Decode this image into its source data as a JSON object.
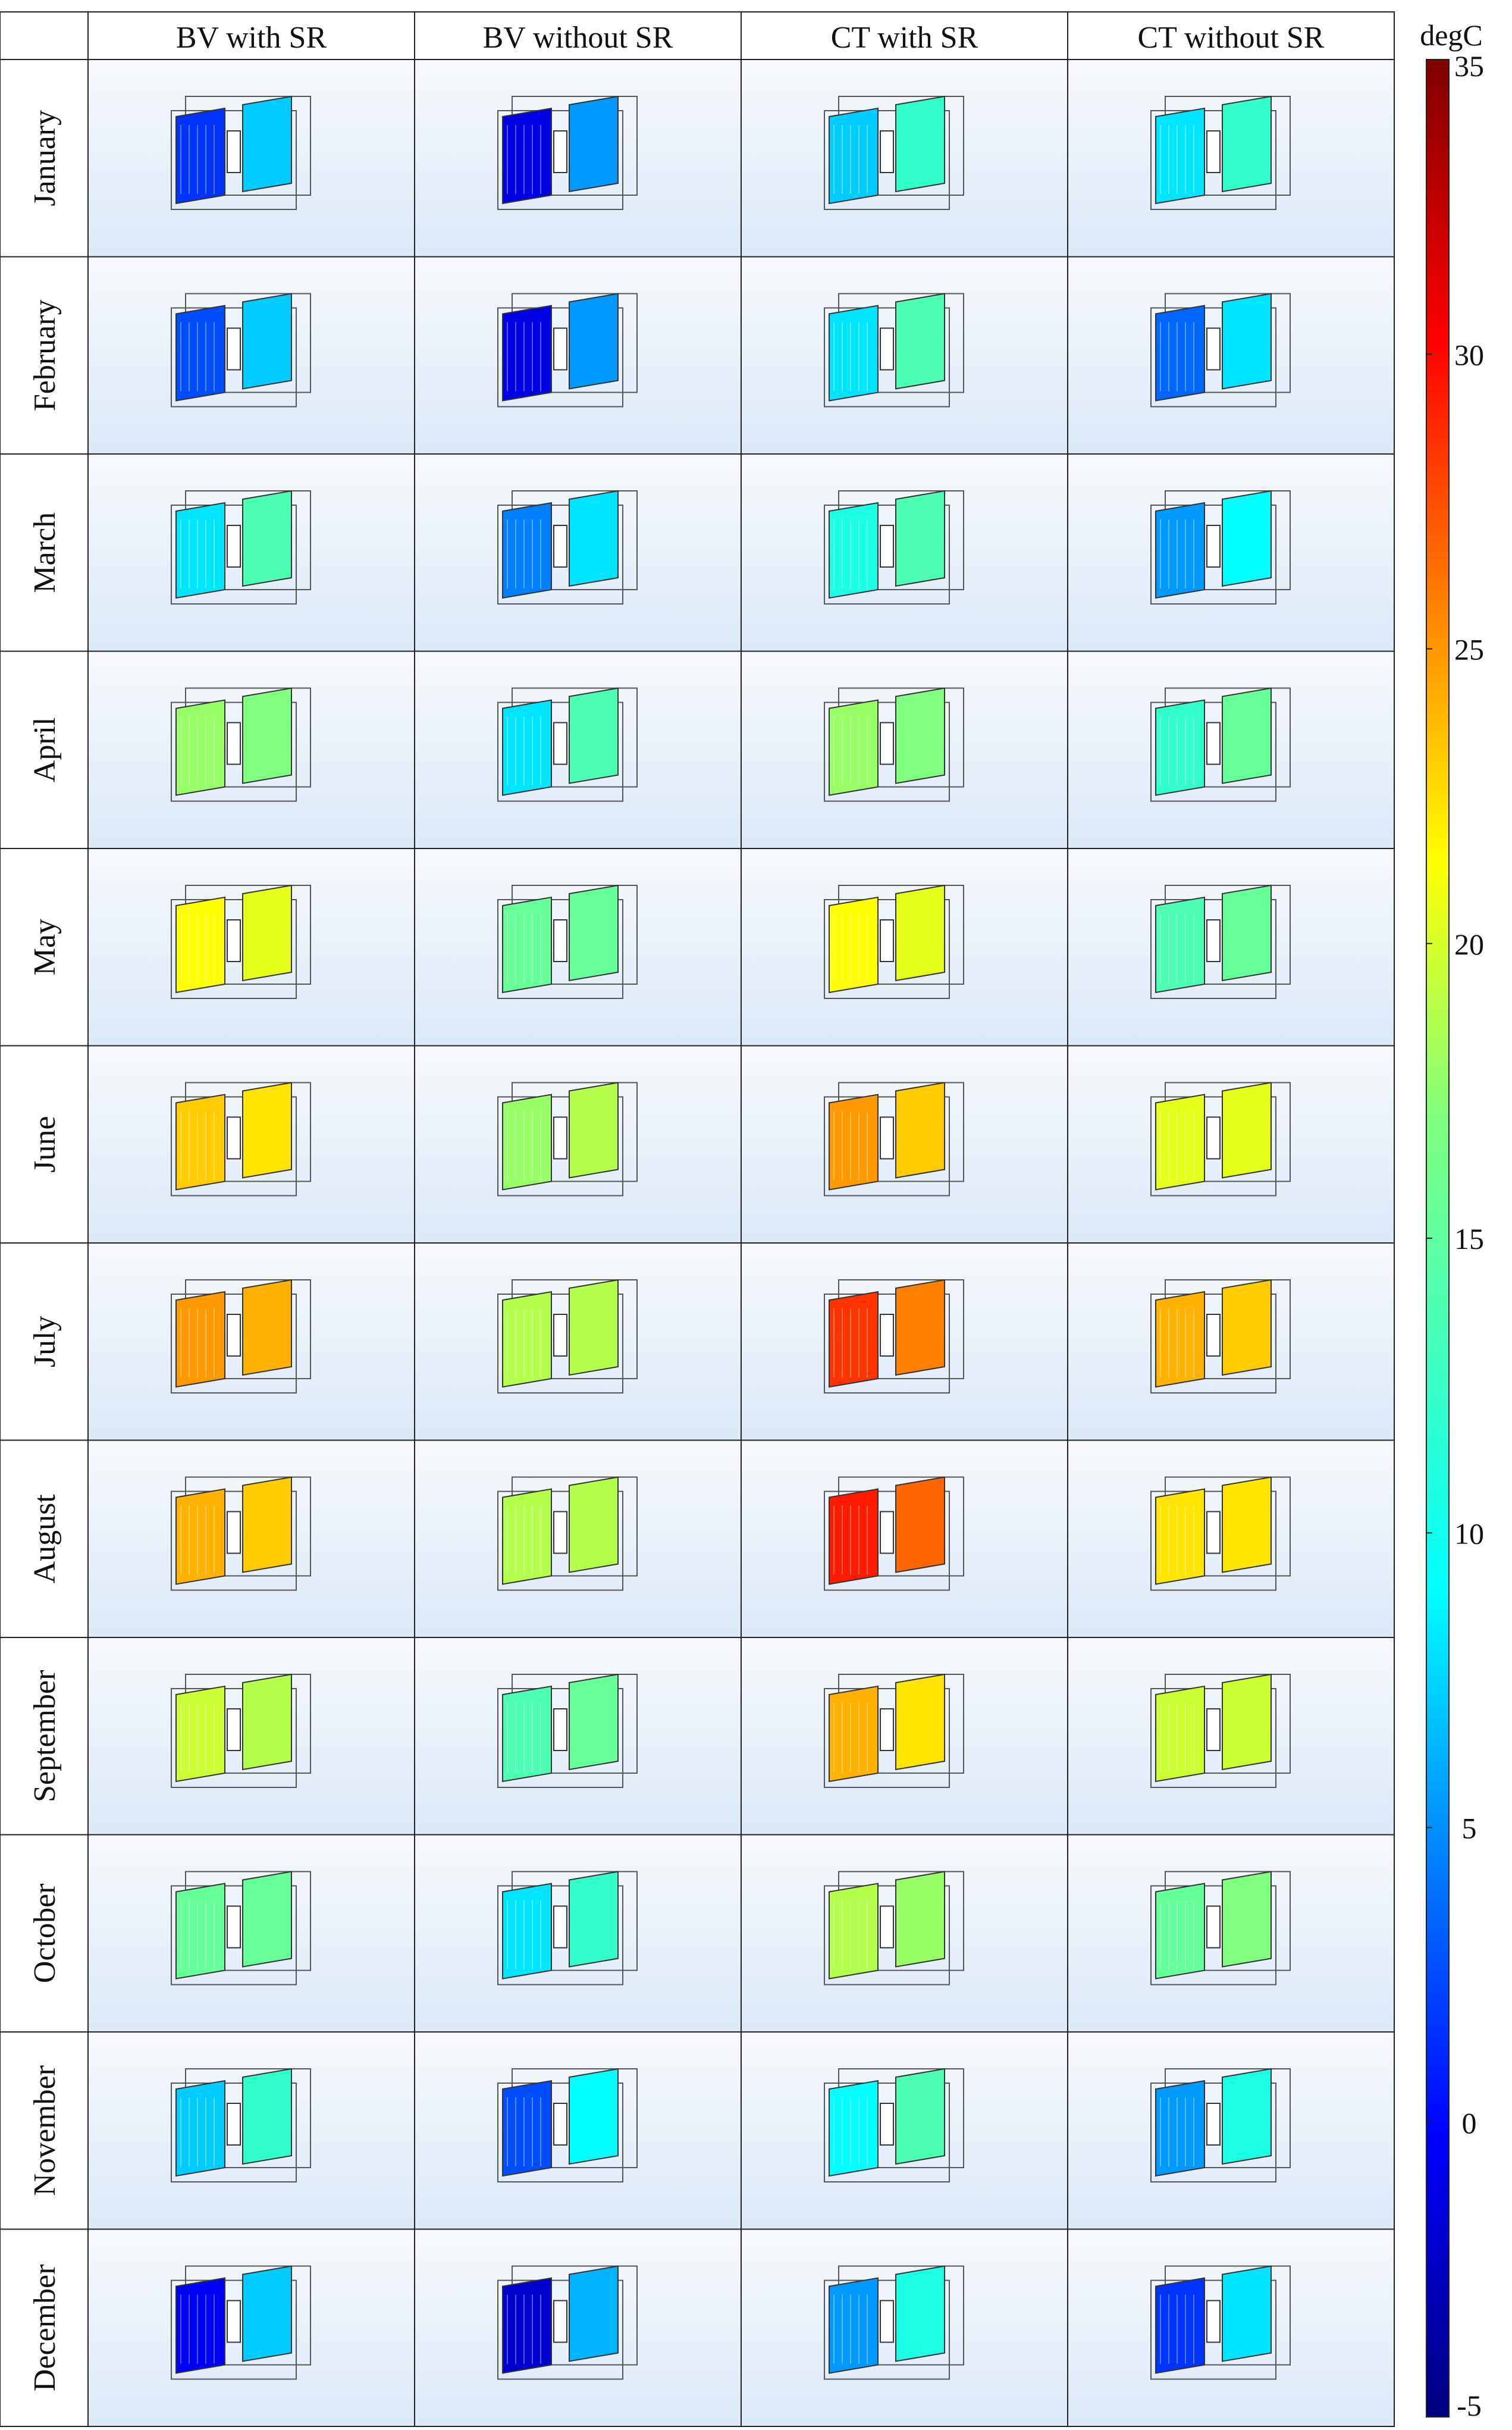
{
  "columns": [
    "BV with SR",
    "BV without SR",
    "CT with SR",
    "CT without SR"
  ],
  "months": [
    "January",
    "February",
    "March",
    "April",
    "May",
    "June",
    "July",
    "August",
    "September",
    "October",
    "November",
    "December"
  ],
  "colorbar": {
    "unit": "degC",
    "min": -5,
    "max": 35,
    "ticks": [
      35,
      30,
      25,
      20,
      15,
      10,
      5,
      0,
      -5
    ]
  },
  "temperatures": [
    [
      [
        2,
        8
      ],
      [
        -1,
        6
      ],
      [
        8,
        12
      ],
      [
        9,
        12
      ]
    ],
    [
      [
        3,
        8
      ],
      [
        -1,
        6
      ],
      [
        9,
        13
      ],
      [
        4,
        9
      ]
    ],
    [
      [
        9,
        13
      ],
      [
        5,
        9
      ],
      [
        11,
        13
      ],
      [
        6,
        10
      ]
    ],
    [
      [
        16,
        15
      ],
      [
        9,
        13
      ],
      [
        16,
        15
      ],
      [
        12,
        14
      ]
    ],
    [
      [
        20,
        19
      ],
      [
        14,
        14
      ],
      [
        20,
        19
      ],
      [
        13,
        14
      ]
    ],
    [
      [
        22,
        21
      ],
      [
        16,
        17
      ],
      [
        24,
        22
      ],
      [
        19,
        19
      ]
    ],
    [
      [
        24,
        23
      ],
      [
        17,
        17
      ],
      [
        28,
        25
      ],
      [
        23,
        22
      ]
    ],
    [
      [
        23,
        22
      ],
      [
        17,
        17
      ],
      [
        29,
        26
      ],
      [
        21,
        21
      ]
    ],
    [
      [
        18,
        17
      ],
      [
        13,
        14
      ],
      [
        23,
        21
      ],
      [
        18,
        18
      ]
    ],
    [
      [
        14,
        14
      ],
      [
        9,
        12
      ],
      [
        17,
        16
      ],
      [
        14,
        15
      ]
    ],
    [
      [
        8,
        12
      ],
      [
        3,
        10
      ],
      [
        10,
        13
      ],
      [
        6,
        11
      ]
    ],
    [
      [
        0,
        8
      ],
      [
        -2,
        7
      ],
      [
        6,
        11
      ],
      [
        2,
        9
      ]
    ]
  ]
}
